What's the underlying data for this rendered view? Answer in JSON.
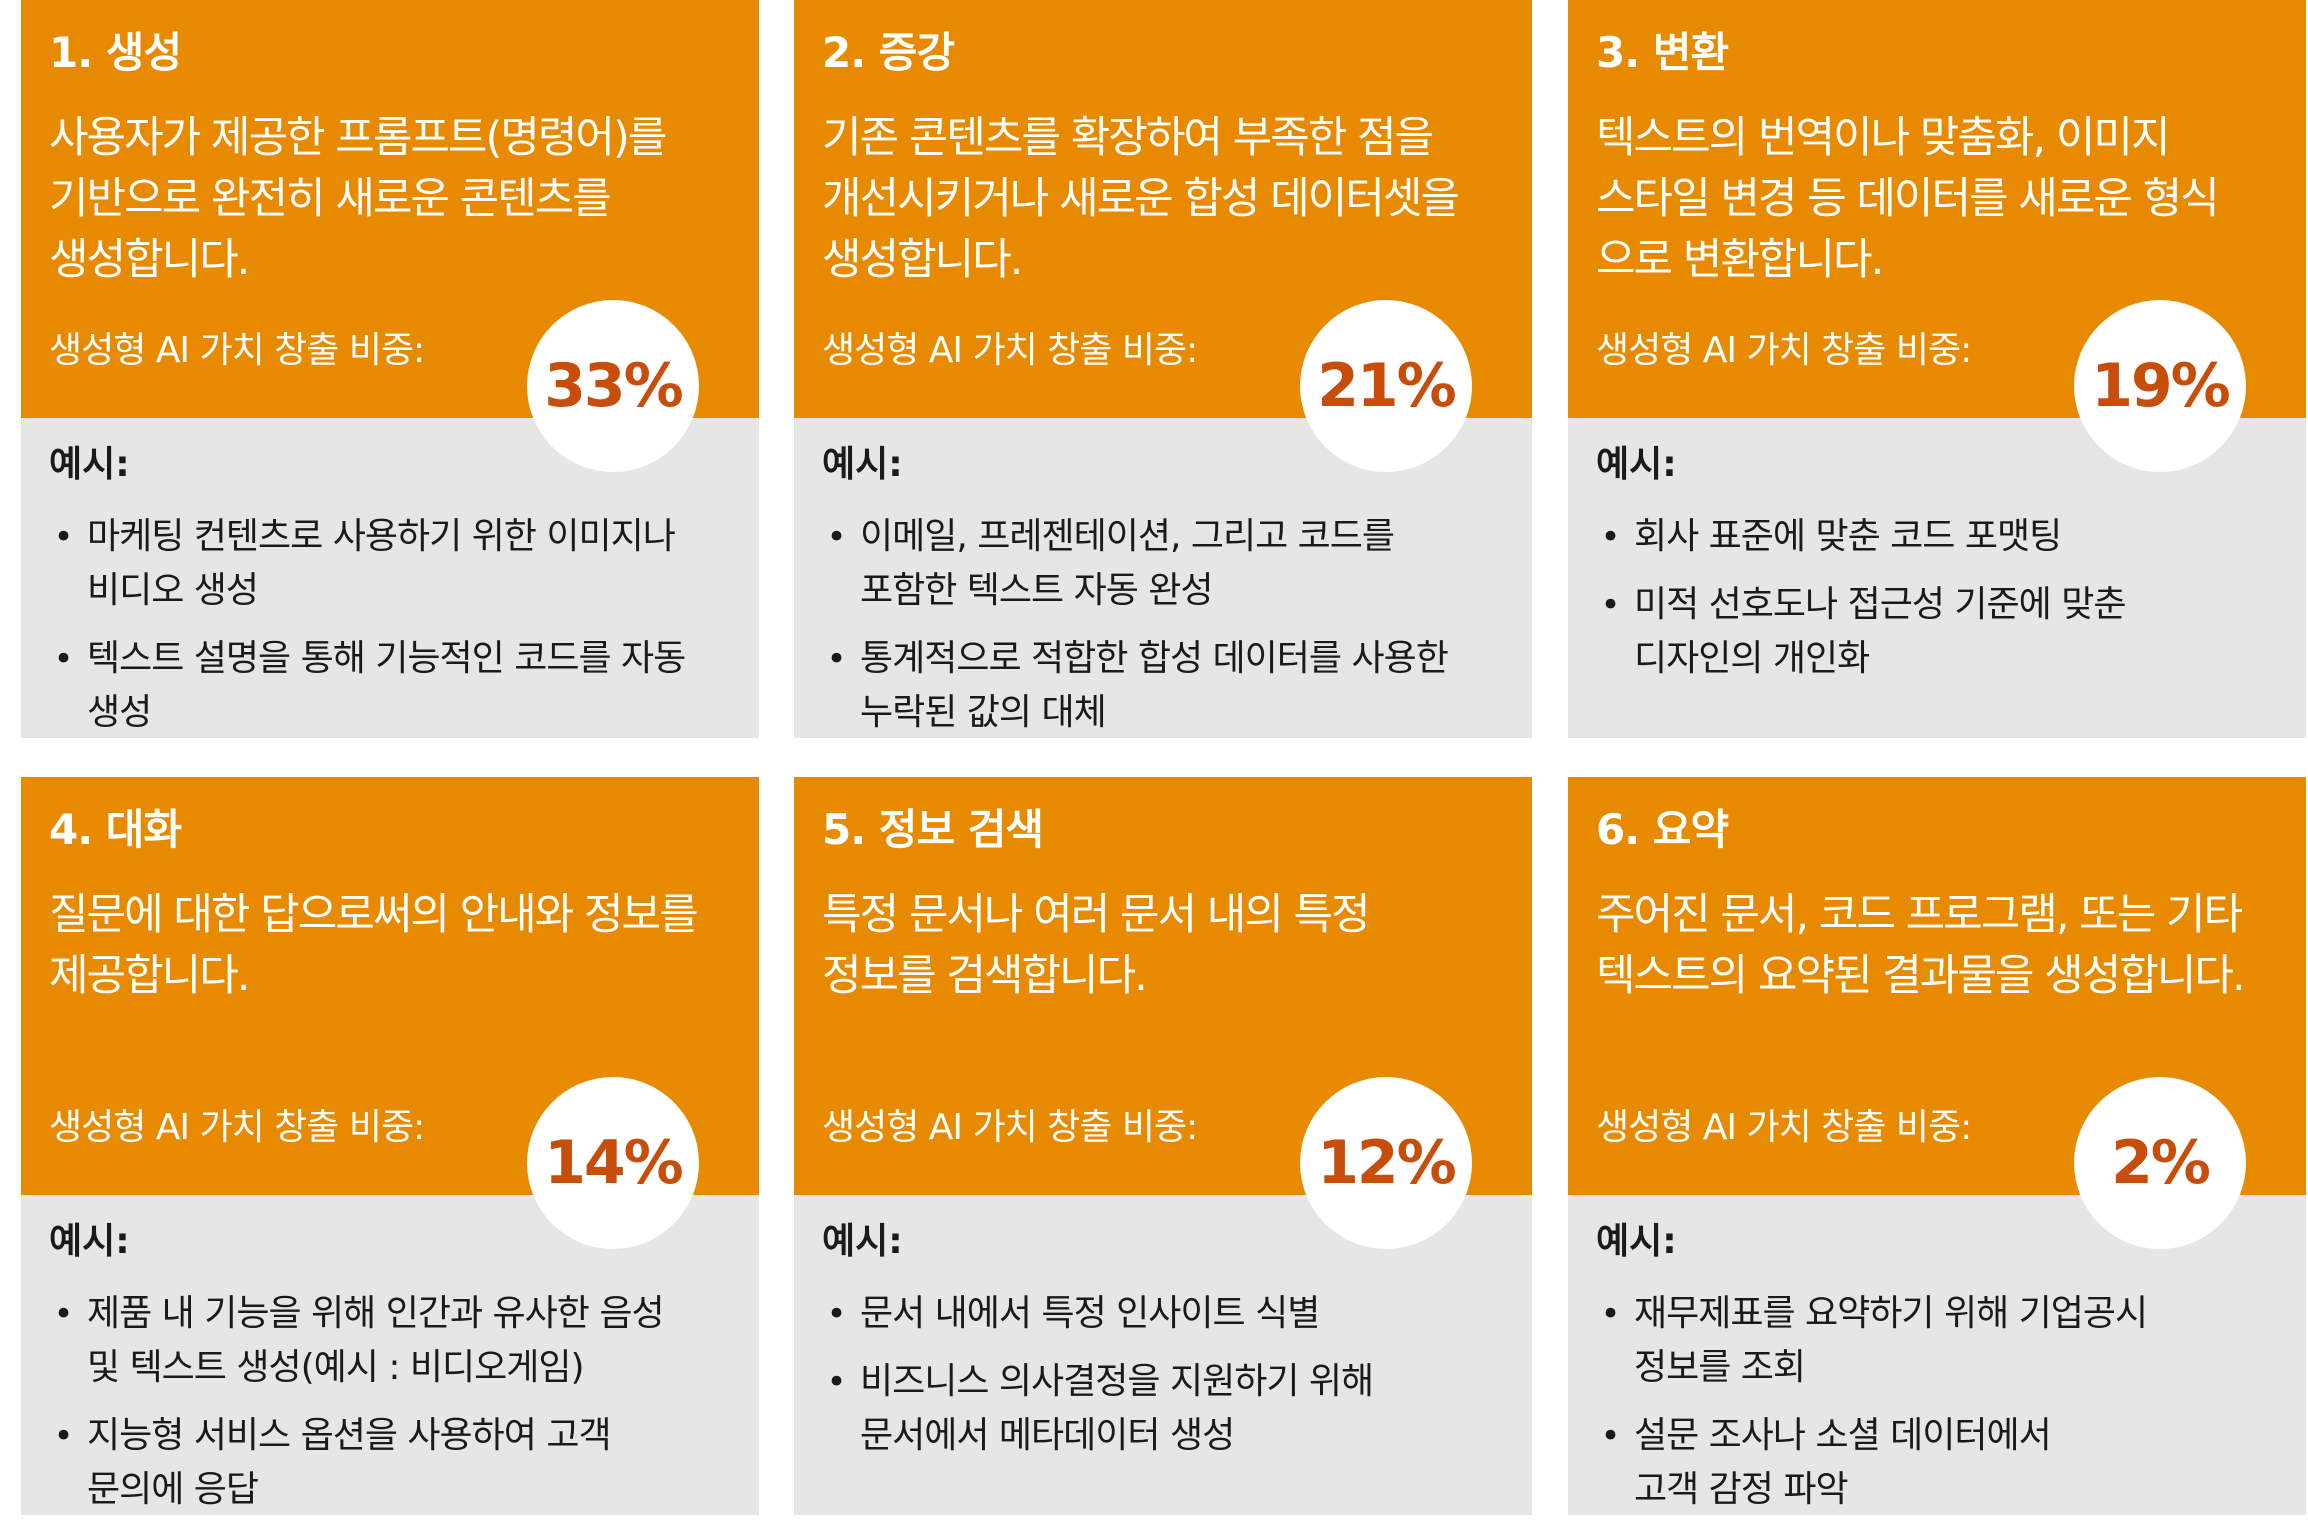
{
  "value_label": "생성형 AI 가치 창출 비중:",
  "examples_heading": "예시:",
  "colors": {
    "header_bg": "#e88a00",
    "body_bg": "#e6e6e6",
    "percent": "#c74d0a"
  },
  "cards": [
    {
      "title": "1. 생성",
      "desc": [
        "사용자가 제공한 프롬프트(명령어)를",
        "기반으로 완전히 새로운 콘텐츠를",
        "생성합니다."
      ],
      "percent": "33%",
      "examples": [
        [
          "마케팅 컨텐츠로 사용하기 위한 이미지나",
          "비디오 생성"
        ],
        [
          "텍스트 설명을 통해 기능적인 코드를 자동",
          "생성"
        ]
      ]
    },
    {
      "title": "2. 증강",
      "desc": [
        "기존 콘텐츠를 확장하여 부족한 점을",
        "개선시키거나 새로운 합성 데이터셋을",
        "생성합니다."
      ],
      "percent": "21%",
      "examples": [
        [
          "이메일, 프레젠테이션, 그리고 코드를",
          "포함한 텍스트 자동 완성"
        ],
        [
          "통계적으로 적합한 합성 데이터를 사용한",
          "누락된 값의 대체"
        ]
      ]
    },
    {
      "title": "3. 변환",
      "desc": [
        "텍스트의 번역이나 맞춤화, 이미지",
        "스타일 변경 등 데이터를 새로운 형식",
        "으로 변환합니다."
      ],
      "percent": "19%",
      "examples": [
        [
          "회사 표준에 맞춘 코드 포맷팅"
        ],
        [
          "미적 선호도나 접근성 기준에 맞춘",
          "디자인의 개인화"
        ]
      ]
    },
    {
      "title": "4. 대화",
      "desc": [
        "질문에 대한 답으로써의 안내와 정보를",
        "제공합니다."
      ],
      "percent": "14%",
      "examples": [
        [
          "제품 내 기능을 위해 인간과 유사한 음성",
          "및 텍스트 생성(예시 : 비디오게임)"
        ],
        [
          "지능형 서비스 옵션을 사용하여 고객",
          "문의에 응답"
        ]
      ]
    },
    {
      "title": "5. 정보 검색",
      "desc": [
        "특정 문서나 여러 문서 내의 특정",
        "정보를 검색합니다."
      ],
      "percent": "12%",
      "examples": [
        [
          "문서 내에서 특정 인사이트 식별"
        ],
        [
          "비즈니스 의사결정을 지원하기 위해",
          "문서에서 메타데이터 생성"
        ]
      ]
    },
    {
      "title": "6. 요약",
      "desc": [
        "주어진 문서, 코드 프로그램, 또는 기타",
        "텍스트의 요약된 결과물을 생성합니다."
      ],
      "percent": "2%",
      "examples": [
        [
          "재무제표를 요약하기 위해 기업공시",
          "정보를 조회"
        ],
        [
          "설문 조사나 소셜 데이터에서",
          "고객 감정 파악"
        ]
      ]
    }
  ]
}
